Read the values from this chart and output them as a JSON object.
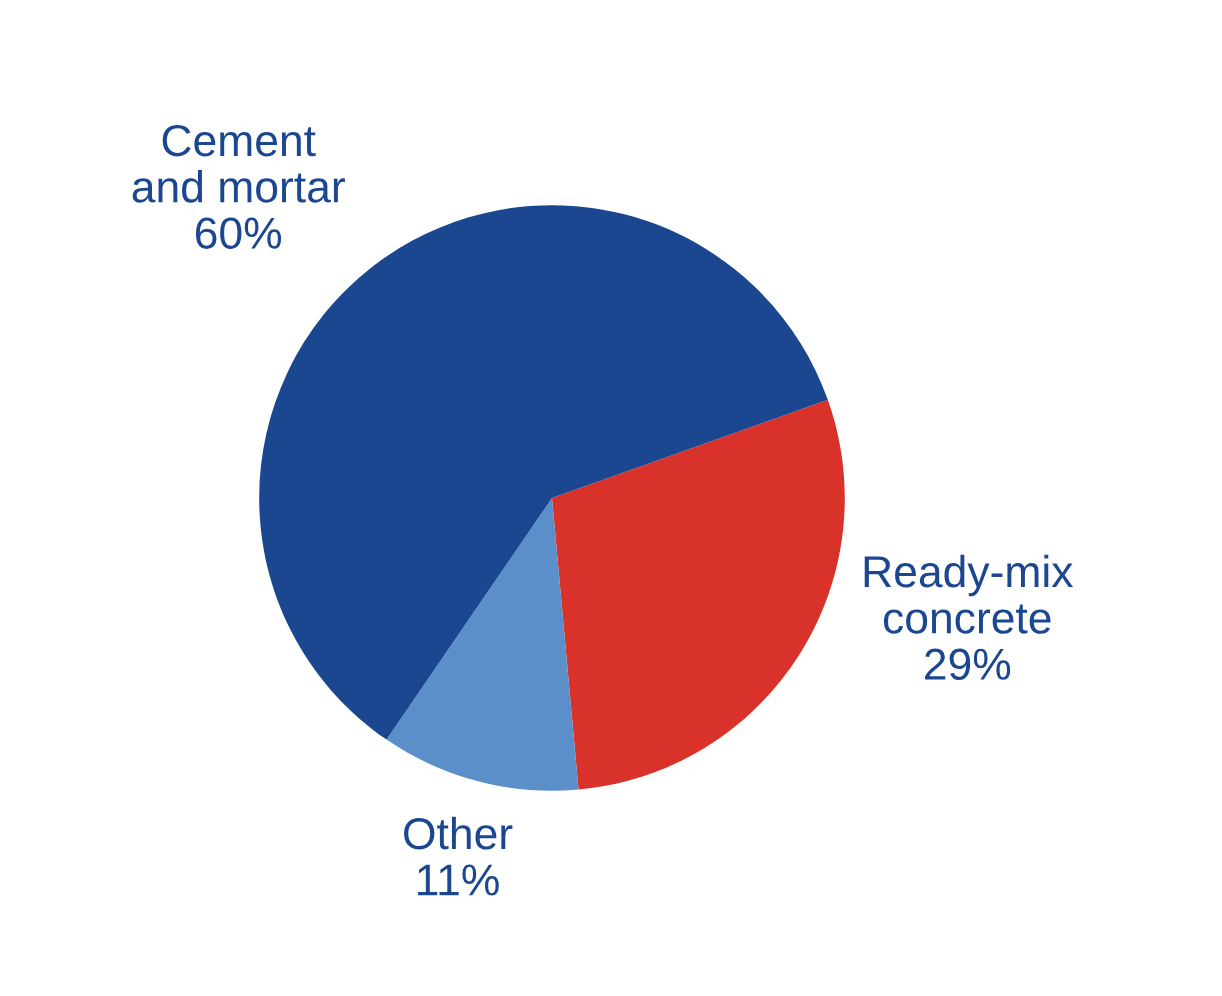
{
  "chart_data": {
    "type": "pie",
    "categories": [
      "Ready-mix\nconcrete",
      "Other",
      "Cement\nand mortar"
    ],
    "values": [
      29,
      11,
      60
    ],
    "colors": [
      "#d9322b",
      "#5b8fca",
      "#1b4690"
    ],
    "value_labels": [
      "29%",
      "11%",
      "60%"
    ],
    "legend": false
  }
}
